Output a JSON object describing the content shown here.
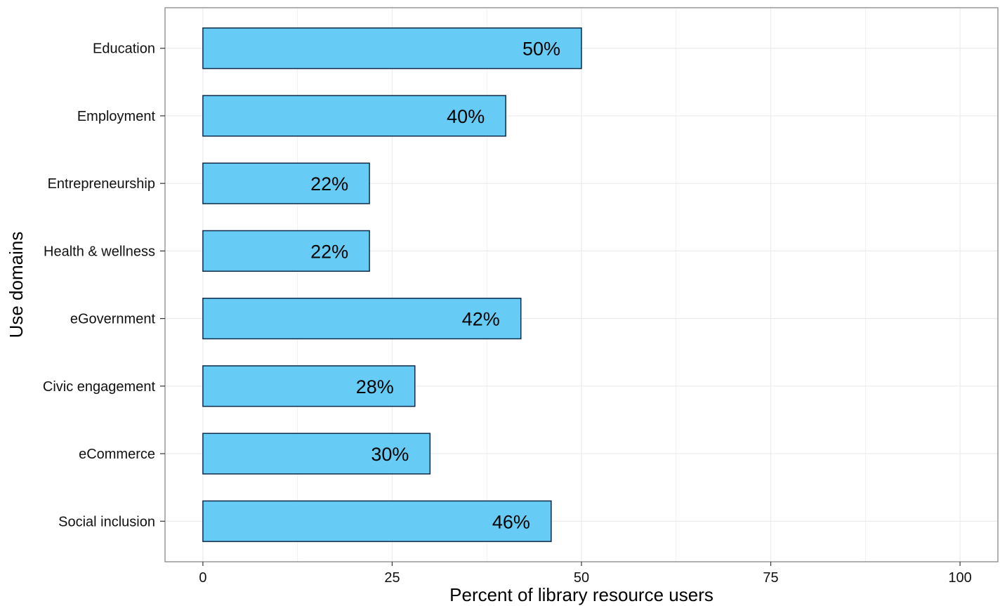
{
  "chart_data": {
    "type": "bar",
    "orientation": "horizontal",
    "categories": [
      "Education",
      "Employment",
      "Entrepreneurship",
      "Health & wellness",
      "eGovernment",
      "Civic engagement",
      "eCommerce",
      "Social inclusion"
    ],
    "values": [
      50,
      40,
      22,
      22,
      42,
      28,
      30,
      46
    ],
    "data_labels": [
      "50%",
      "40%",
      "22%",
      "22%",
      "42%",
      "28%",
      "30%",
      "46%"
    ],
    "title": "",
    "xlabel": "Percent of library resource users",
    "ylabel": "Use domains",
    "xlim": [
      -5,
      105
    ],
    "x_ticks": [
      0,
      25,
      50,
      75,
      100
    ],
    "x_tick_labels": [
      "0",
      "25",
      "50",
      "75",
      "100"
    ],
    "grid": true,
    "legend": "none",
    "colors": {
      "bar_fill": "#66ccf5",
      "bar_stroke": "#0d2a4a",
      "grid": "#ebebeb",
      "panel_border": "#7f7f7f"
    }
  }
}
